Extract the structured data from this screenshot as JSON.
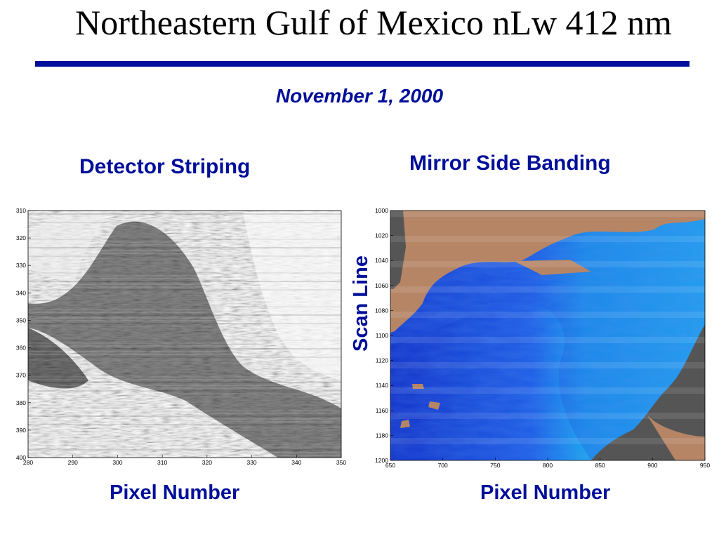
{
  "slide": {
    "title": "Northeastern Gulf of Mexico nLw 412 nm",
    "date": "November 1, 2000"
  },
  "panels": [
    {
      "heading": "Detector Striping",
      "xlabel": "Pixel Number",
      "colormap": "grayscale",
      "x_ticks": [
        "280",
        "290",
        "300",
        "310",
        "320",
        "330",
        "340",
        "350"
      ],
      "y_ticks": [
        "310",
        "320",
        "330",
        "340",
        "350",
        "360",
        "370",
        "380",
        "390",
        "400"
      ],
      "x_range": [
        280,
        350
      ],
      "y_range": [
        310,
        400
      ]
    },
    {
      "heading": "Mirror Side Banding",
      "xlabel": "Pixel Number",
      "ylabel": "Scan Line",
      "colormap": "blue-cyan with land mask",
      "x_ticks": [
        "650",
        "700",
        "750",
        "800",
        "850",
        "900",
        "950"
      ],
      "y_ticks": [
        "1000",
        "1020",
        "1040",
        "1060",
        "1080",
        "1100",
        "1120",
        "1140",
        "1160",
        "1180",
        "1200"
      ],
      "x_range": [
        650,
        950
      ],
      "y_range": [
        1000,
        1200
      ]
    }
  ],
  "colors": {
    "accent": "#000f99",
    "land": "#b58566",
    "nodata": "#555555",
    "water_deep": "#1b3fd6",
    "water_shallow": "#1fb3f2"
  }
}
